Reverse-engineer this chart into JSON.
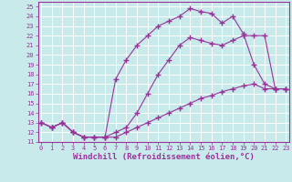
{
  "xlabel": "Windchill (Refroidissement éolien,°C)",
  "ylabel": "",
  "bg_color": "#c8eaea",
  "grid_color": "#b0d8d8",
  "line_color": "#993399",
  "x_values": [
    0,
    1,
    2,
    3,
    4,
    5,
    6,
    7,
    8,
    9,
    10,
    11,
    12,
    13,
    14,
    15,
    16,
    17,
    18,
    19,
    20,
    21,
    22,
    23
  ],
  "line1_y": [
    13,
    12.5,
    13,
    12,
    11.5,
    11.5,
    11.5,
    17.5,
    19.5,
    21,
    22,
    23,
    23.5,
    24,
    24.8,
    24.5,
    24.3,
    23.3,
    24,
    22.2,
    19,
    17,
    16.5,
    16.5
  ],
  "line2_y": [
    13,
    12.5,
    13,
    12,
    11.5,
    11.5,
    11.5,
    12,
    12.5,
    14,
    16,
    18,
    19.5,
    21,
    21.8,
    21.5,
    21.2,
    21,
    21.5,
    22,
    22,
    22,
    16.5,
    16.5
  ],
  "line3_y": [
    13,
    12.5,
    13,
    12,
    11.5,
    11.5,
    11.5,
    11.5,
    12,
    12.5,
    13,
    13.5,
    14,
    14.5,
    15,
    15.5,
    15.8,
    16.2,
    16.5,
    16.8,
    17,
    16.5,
    16.5,
    16.5
  ],
  "xlim": [
    0,
    23
  ],
  "ylim": [
    11,
    25.5
  ],
  "yticks": [
    11,
    12,
    13,
    14,
    15,
    16,
    17,
    18,
    19,
    20,
    21,
    22,
    23,
    24,
    25
  ],
  "xticks": [
    0,
    1,
    2,
    3,
    4,
    5,
    6,
    7,
    8,
    9,
    10,
    11,
    12,
    13,
    14,
    15,
    16,
    17,
    18,
    19,
    20,
    21,
    22,
    23
  ],
  "marker": "+",
  "markersize": 4,
  "linewidth": 0.8,
  "tick_fontsize": 5.0,
  "xlabel_fontsize": 6.5,
  "tick_color": "#993399",
  "xlabel_color": "#993399"
}
